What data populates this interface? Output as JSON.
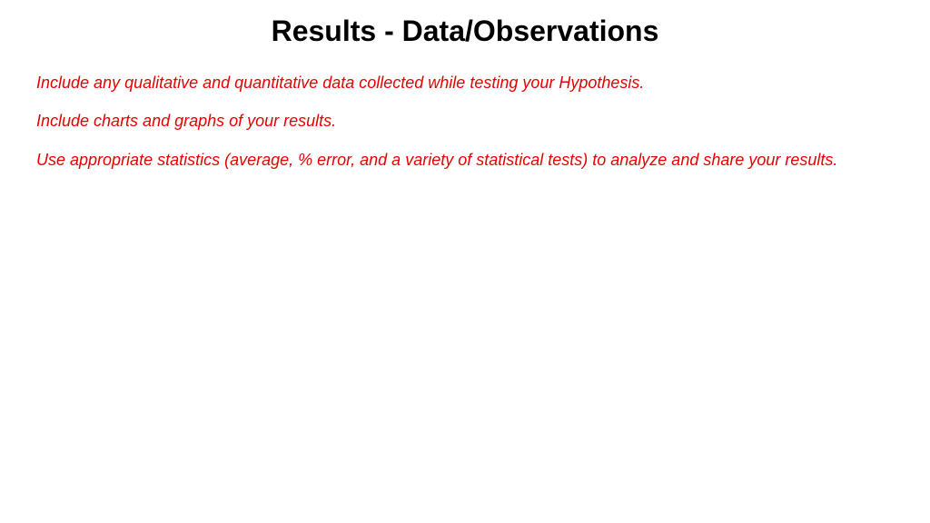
{
  "slide": {
    "title": "Results - Data/Observations",
    "paragraphs": [
      "Include any qualitative and quantitative data collected while testing your Hypothesis.",
      "Include charts and graphs of your results.",
      "Use appropriate statistics (average, % error, and a variety of statistical tests) to analyze and share your results."
    ],
    "title_color": "#000000",
    "body_color": "#e60000",
    "background_color": "#ffffff",
    "title_fontsize": 32,
    "body_fontsize": 18
  }
}
